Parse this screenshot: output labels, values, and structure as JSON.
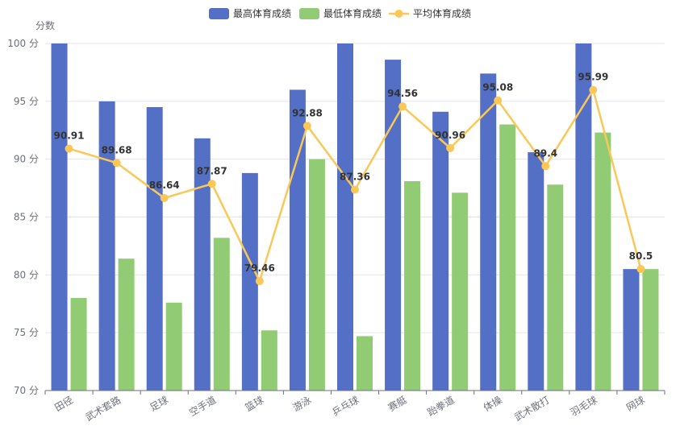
{
  "chart_data": {
    "type": "bar",
    "ylabel": "分数",
    "ylim": [
      70,
      100
    ],
    "yticks": [
      70,
      75,
      80,
      85,
      90,
      95,
      100
    ],
    "ytick_suffix": " 分",
    "categories": [
      "田径",
      "武术套路",
      "足球",
      "空手道",
      "篮球",
      "游泳",
      "乒乓球",
      "赛艇",
      "跆拳道",
      "体操",
      "武术散打",
      "羽毛球",
      "网球"
    ],
    "series": [
      {
        "name": "最高体育成绩",
        "type": "bar",
        "color": "#5470c6",
        "values": [
          100,
          95,
          94.5,
          91.8,
          88.8,
          96,
          100,
          98.6,
          94.1,
          97.4,
          90.6,
          100,
          80.5
        ]
      },
      {
        "name": "最低体育成绩",
        "type": "bar",
        "color": "#91cc75",
        "values": [
          78,
          81.4,
          77.6,
          83.2,
          75.2,
          90,
          74.7,
          88.1,
          87.1,
          93,
          87.8,
          92.3,
          80.5
        ]
      },
      {
        "name": "平均体育成绩",
        "type": "line",
        "color": "#fac858",
        "values": [
          90.91,
          89.68,
          86.64,
          87.87,
          79.46,
          92.88,
          87.36,
          94.56,
          90.96,
          95.08,
          89.4,
          95.99,
          80.5
        ],
        "labels": [
          "90.91",
          "89.68",
          "86.64",
          "87.87",
          "79.46",
          "92.88",
          "87.36",
          "94.56",
          "90.96",
          "95.08",
          "89.4",
          "95.99",
          "80.5"
        ]
      }
    ],
    "legend_position": "top-center",
    "grid": true
  }
}
